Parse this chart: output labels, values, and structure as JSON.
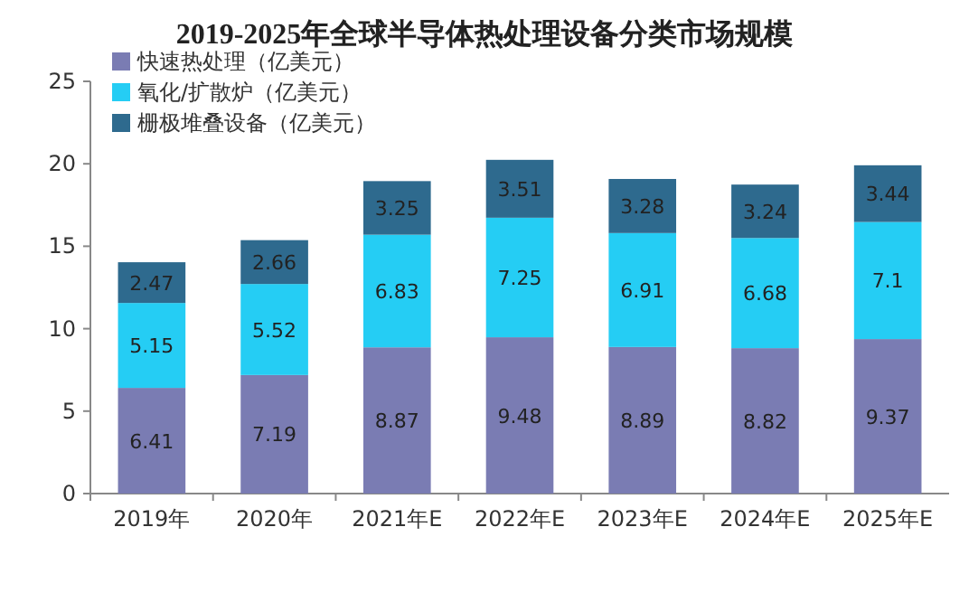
{
  "chart_data": {
    "type": "bar",
    "title": "2019-2025年全球半导体热处理设备分类市场规模",
    "categories": [
      "2019年",
      "2020年",
      "2021年E",
      "2022年E",
      "2023年E",
      "2024年E",
      "2025年E"
    ],
    "stacked": true,
    "data_labels": true,
    "legend": "top left",
    "ylim": [
      0,
      25
    ],
    "yticks": [
      0,
      5,
      10,
      15,
      20,
      25
    ],
    "series": [
      {
        "name": "快速热处理（亿美元）",
        "color": "#7a7cb3",
        "values": [
          6.41,
          7.19,
          8.87,
          9.48,
          8.89,
          8.82,
          9.37
        ]
      },
      {
        "name": "氧化/扩散炉（亿美元）",
        "color": "#25cdf4",
        "values": [
          5.15,
          5.52,
          6.83,
          7.25,
          6.91,
          6.68,
          7.1
        ]
      },
      {
        "name": "栅极堆叠设备（亿美元）",
        "color": "#2e6a8e",
        "values": [
          2.47,
          2.66,
          3.25,
          3.51,
          3.28,
          3.24,
          3.44
        ]
      }
    ]
  }
}
